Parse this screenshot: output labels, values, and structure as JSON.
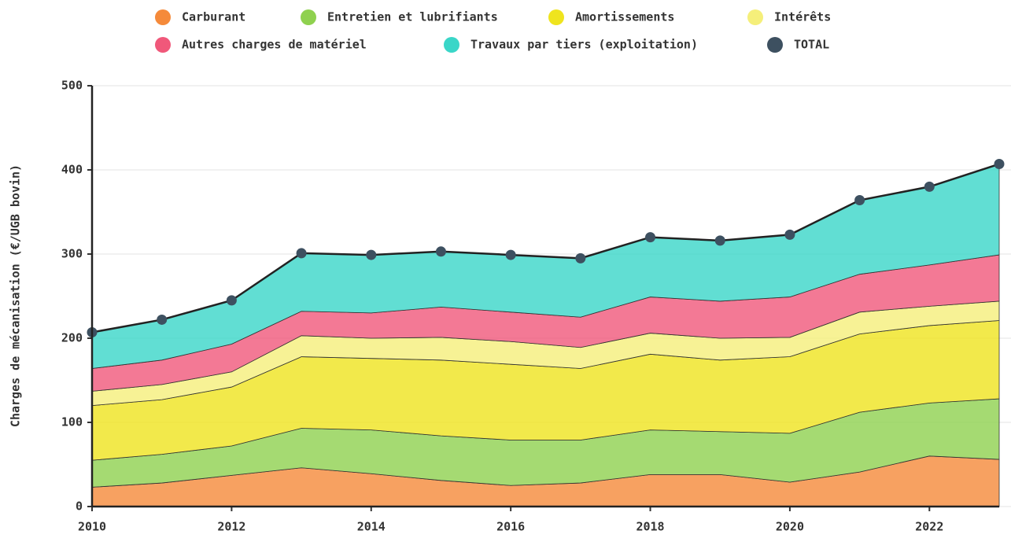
{
  "chart_data": {
    "type": "stacked_area",
    "y_label": "Charges de mécanisation (€/UGB bovin)",
    "x": [
      2010,
      2011,
      2012,
      2013,
      2014,
      2015,
      2016,
      2017,
      2018,
      2019,
      2020,
      2021,
      2022,
      2023
    ],
    "xlim": [
      2010,
      2023
    ],
    "xticks": [
      2010,
      2012,
      2014,
      2016,
      2018,
      2020,
      2022
    ],
    "ylim": [
      0,
      500
    ],
    "yticks": [
      0,
      100,
      200,
      300,
      400,
      500
    ],
    "grid": true,
    "legend": "top",
    "series": [
      {
        "name": "Carburant",
        "color": "#f58a3a",
        "values": [
          23,
          28,
          37,
          46,
          39,
          31,
          25,
          28,
          38,
          38,
          29,
          41,
          60,
          56
        ]
      },
      {
        "name": "Entretien et lubrifiants",
        "color": "#8fd14f",
        "values": [
          32,
          34,
          35,
          47,
          52,
          53,
          54,
          51,
          53,
          51,
          58,
          71,
          63,
          72
        ]
      },
      {
        "name": "Amortissements",
        "color": "#efe41e",
        "values": [
          65,
          65,
          70,
          85,
          85,
          90,
          90,
          85,
          90,
          85,
          91,
          93,
          92,
          93
        ]
      },
      {
        "name": "Intérêts",
        "color": "#f5ef7a",
        "values": [
          17,
          18,
          18,
          25,
          24,
          27,
          27,
          25,
          25,
          26,
          23,
          26,
          23,
          23
        ]
      },
      {
        "name": "Autres charges de matériel",
        "color": "#f0587a",
        "values": [
          27,
          29,
          33,
          29,
          30,
          36,
          35,
          36,
          43,
          44,
          48,
          45,
          49,
          55
        ]
      },
      {
        "name": "Travaux par tiers (exploitation)",
        "color": "#3ad6c8",
        "values": [
          43,
          48,
          52,
          69,
          69,
          66,
          68,
          70,
          71,
          72,
          74,
          88,
          93,
          108
        ]
      },
      {
        "name": "TOTAL",
        "color": "#3d5060",
        "type": "line",
        "values": [
          207,
          222,
          245,
          301,
          299,
          303,
          299,
          295,
          320,
          316,
          323,
          364,
          380,
          407
        ]
      }
    ]
  }
}
